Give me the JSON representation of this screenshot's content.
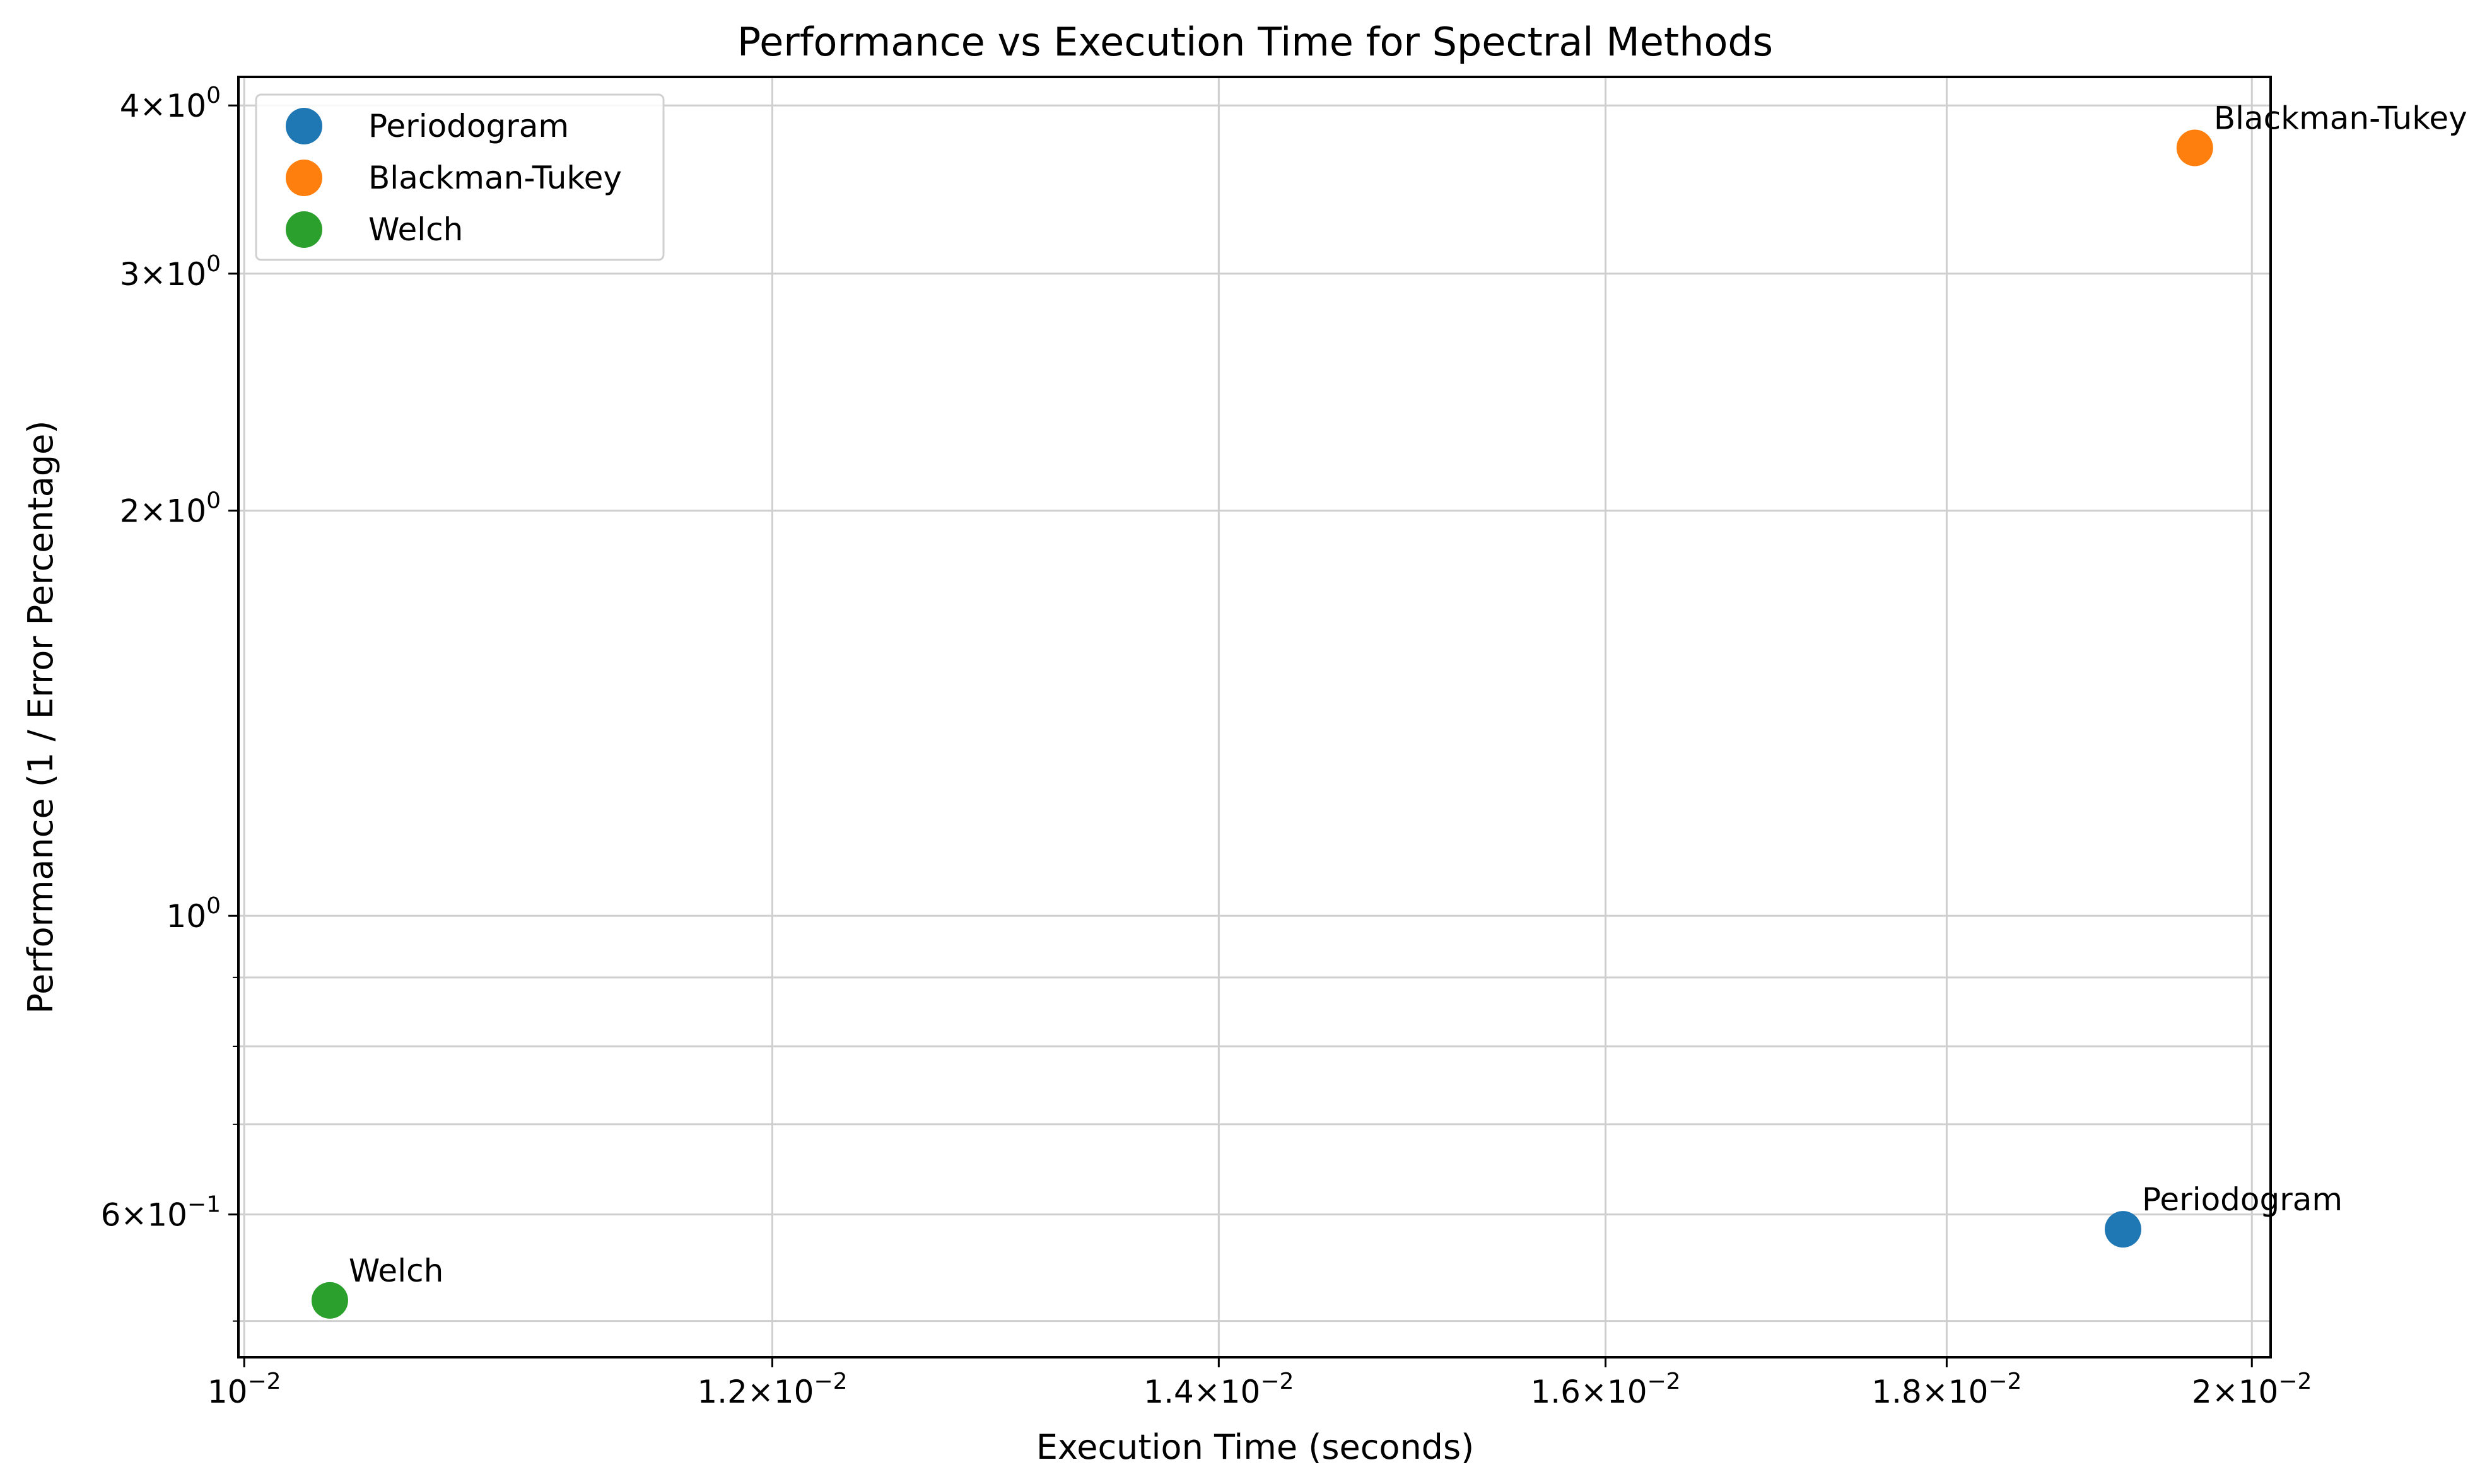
{
  "chart_data": {
    "type": "scatter",
    "title": "Performance vs Execution Time for Spectral Methods",
    "xlabel": "Execution Time (seconds)",
    "ylabel": "Performance (1 / Error Percentage)",
    "xscale": "log",
    "yscale": "log",
    "xlim": [
      0.00998,
      0.02013
    ],
    "ylim": [
      0.47,
      4.2
    ],
    "grid": true,
    "legend_position": "top-left",
    "x_major_ticks": [
      {
        "value": 0.01,
        "mantissa": "",
        "base": "10",
        "exp": "−2"
      },
      {
        "value": 0.012,
        "mantissa": "1.2",
        "base": "10",
        "exp": "−2"
      },
      {
        "value": 0.014,
        "mantissa": "1.4",
        "base": "10",
        "exp": "−2"
      },
      {
        "value": 0.016,
        "mantissa": "1.6",
        "base": "10",
        "exp": "−2"
      },
      {
        "value": 0.018,
        "mantissa": "1.8",
        "base": "10",
        "exp": "−2"
      },
      {
        "value": 0.02,
        "mantissa": "2",
        "base": "10",
        "exp": "−2"
      }
    ],
    "y_major_ticks": [
      {
        "value": 0.6,
        "mantissa": "6",
        "base": "10",
        "exp": "−1"
      },
      {
        "value": 1.0,
        "mantissa": "",
        "base": "10",
        "exp": "0"
      },
      {
        "value": 2.0,
        "mantissa": "2",
        "base": "10",
        "exp": "0"
      },
      {
        "value": 3.0,
        "mantissa": "3",
        "base": "10",
        "exp": "0"
      },
      {
        "value": 4.0,
        "mantissa": "4",
        "base": "10",
        "exp": "0"
      }
    ],
    "y_minor_ticks": [
      0.5,
      0.7,
      0.8,
      0.9
    ],
    "series": [
      {
        "name": "Periodogram",
        "color": "#1f77b4",
        "x": [
          0.01913
        ],
        "y": [
          0.585
        ],
        "label": "Periodogram"
      },
      {
        "name": "Blackman-Tukey",
        "color": "#ff7f0e",
        "x": [
          0.01961
        ],
        "y": [
          3.72
        ],
        "label": "Blackman-Tukey"
      },
      {
        "name": "Welch",
        "color": "#2ca02c",
        "x": [
          0.0103
        ],
        "y": [
          0.518
        ],
        "label": "Welch"
      }
    ]
  }
}
